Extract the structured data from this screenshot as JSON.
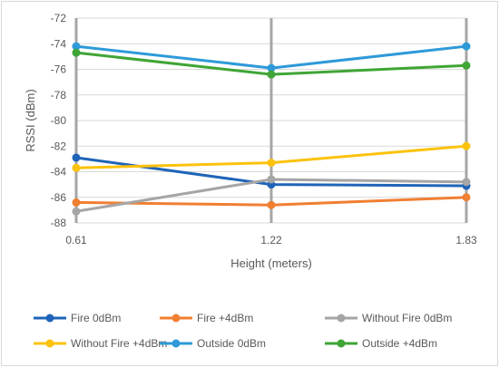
{
  "chart_data": {
    "type": "line",
    "title": "",
    "xlabel": "Height (meters)",
    "ylabel": "RSSI (dBm)",
    "x": [
      0.61,
      1.22,
      1.83
    ],
    "x_tick_labels": [
      "0.61",
      "1.22",
      "1.83"
    ],
    "ylim": [
      -88,
      -72
    ],
    "y_ticks": [
      -72,
      -74,
      -76,
      -78,
      -80,
      -82,
      -84,
      -86,
      -88
    ],
    "grid": true,
    "legend_position": "bottom",
    "series": [
      {
        "name": "Fire 0dBm",
        "color": "#1f64b8",
        "values": [
          -82.9,
          -85.0,
          -85.1
        ]
      },
      {
        "name": "Fire +4dBm",
        "color": "#f07f32",
        "values": [
          -86.4,
          -86.6,
          -86.0
        ]
      },
      {
        "name": "Without Fire 0dBm",
        "color": "#a5a5a5",
        "values": [
          -87.1,
          -84.6,
          -84.8
        ]
      },
      {
        "name": "Without Fire +4dBm",
        "color": "#fcc20c",
        "values": [
          -83.7,
          -83.3,
          -82.0
        ]
      },
      {
        "name": "Outside 0dBm",
        "color": "#2e9ad9",
        "values": [
          -74.2,
          -75.9,
          -74.2
        ]
      },
      {
        "name": "Outside +4dBm",
        "color": "#3fa535",
        "values": [
          -74.7,
          -76.4,
          -75.7
        ]
      }
    ]
  }
}
